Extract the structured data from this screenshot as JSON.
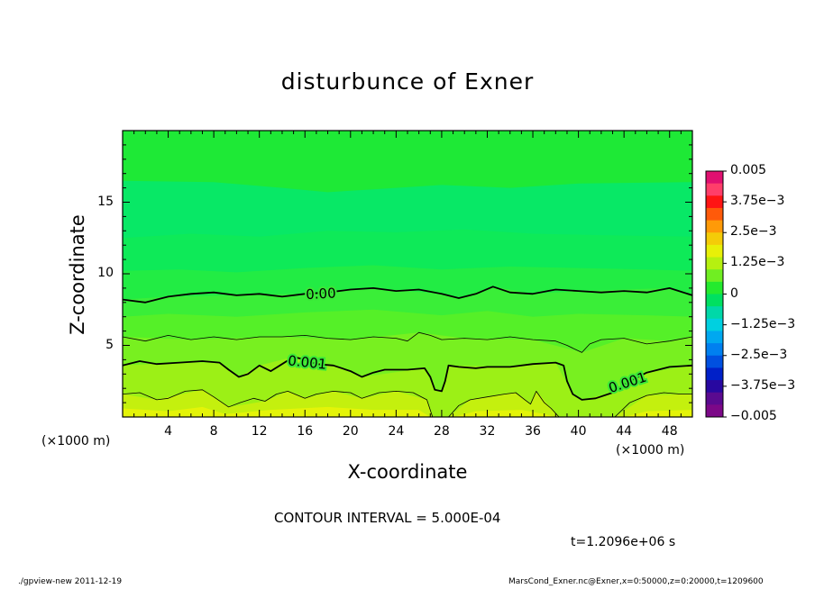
{
  "chart_data": {
    "type": "heatmap",
    "title": "disturbunce of Exner",
    "xlabel": "X-coordinate",
    "ylabel": "Z-coordinate",
    "x_unit_left": "(×1000 m)",
    "x_unit_right": "(×1000 m)",
    "xlim": [
      0,
      50
    ],
    "ylim": [
      0,
      20
    ],
    "x_ticks": [
      "4",
      "8",
      "12",
      "16",
      "20",
      "24",
      "28",
      "32",
      "36",
      "40",
      "44",
      "48"
    ],
    "x_tick_values": [
      4,
      8,
      12,
      16,
      20,
      24,
      28,
      32,
      36,
      40,
      44,
      48
    ],
    "y_ticks": [
      "5",
      "10",
      "15"
    ],
    "y_tick_values": [
      5,
      10,
      15
    ],
    "contour_interval_text": "CONTOUR INTERVAL = 5.000E-04",
    "time_text": "t=1.2096e+06 s",
    "contour_labels": [
      {
        "text": "0.00",
        "x": 17.4,
        "z": 8.6
      },
      {
        "text": "0.001",
        "x": 16.2,
        "z": 3.8
      },
      {
        "text": "0.001",
        "x": 44.3,
        "z": 2.4
      }
    ],
    "contour_lines": [
      {
        "level": 0.0,
        "bold": true,
        "points": [
          [
            0,
            8.2
          ],
          [
            2,
            8.0
          ],
          [
            4,
            8.4
          ],
          [
            6,
            8.6
          ],
          [
            8,
            8.7
          ],
          [
            10,
            8.5
          ],
          [
            12,
            8.6
          ],
          [
            14,
            8.4
          ],
          [
            16,
            8.6
          ],
          [
            18,
            8.7
          ],
          [
            20,
            8.9
          ],
          [
            22,
            9.0
          ],
          [
            24,
            8.8
          ],
          [
            26,
            8.9
          ],
          [
            28,
            8.6
          ],
          [
            29.5,
            8.3
          ],
          [
            31,
            8.6
          ],
          [
            32.5,
            9.1
          ],
          [
            34,
            8.7
          ],
          [
            36,
            8.6
          ],
          [
            38,
            8.9
          ],
          [
            40,
            8.8
          ],
          [
            42,
            8.7
          ],
          [
            44,
            8.8
          ],
          [
            46,
            8.7
          ],
          [
            48,
            9.0
          ],
          [
            50,
            8.5
          ]
        ]
      },
      {
        "level": 0.0005,
        "bold": false,
        "points": [
          [
            0,
            5.6
          ],
          [
            2,
            5.3
          ],
          [
            4,
            5.7
          ],
          [
            6,
            5.4
          ],
          [
            8,
            5.6
          ],
          [
            10,
            5.4
          ],
          [
            12,
            5.6
          ],
          [
            14,
            5.6
          ],
          [
            16,
            5.7
          ],
          [
            18,
            5.5
          ],
          [
            20,
            5.4
          ],
          [
            22,
            5.6
          ],
          [
            24,
            5.5
          ],
          [
            25,
            5.3
          ],
          [
            26,
            5.9
          ],
          [
            27,
            5.7
          ],
          [
            28,
            5.4
          ],
          [
            30,
            5.5
          ],
          [
            32,
            5.4
          ],
          [
            34,
            5.6
          ],
          [
            36,
            5.4
          ],
          [
            38,
            5.3
          ],
          [
            39,
            5.0
          ],
          [
            40.3,
            4.5
          ],
          [
            41,
            5.1
          ],
          [
            42,
            5.4
          ],
          [
            44,
            5.5
          ],
          [
            46,
            5.1
          ],
          [
            48,
            5.3
          ],
          [
            50,
            5.6
          ]
        ]
      },
      {
        "level": 0.001,
        "bold": true,
        "points": [
          [
            0,
            3.6
          ],
          [
            1.5,
            3.9
          ],
          [
            3,
            3.7
          ],
          [
            5,
            3.8
          ],
          [
            7,
            3.9
          ],
          [
            8.5,
            3.8
          ],
          [
            9.3,
            3.3
          ],
          [
            10.2,
            2.8
          ],
          [
            11,
            3.0
          ],
          [
            12,
            3.6
          ],
          [
            13,
            3.2
          ],
          [
            14,
            3.7
          ],
          [
            15,
            4.2
          ],
          [
            16,
            4.0
          ],
          [
            17,
            3.7
          ],
          [
            18.5,
            3.6
          ],
          [
            20,
            3.2
          ],
          [
            21,
            2.8
          ],
          [
            22,
            3.1
          ],
          [
            23,
            3.3
          ],
          [
            25,
            3.3
          ],
          [
            26.5,
            3.4
          ],
          [
            27,
            2.8
          ],
          [
            27.4,
            1.9
          ],
          [
            28,
            1.8
          ],
          [
            28.3,
            2.5
          ],
          [
            28.6,
            3.6
          ],
          [
            29.5,
            3.5
          ],
          [
            31,
            3.4
          ],
          [
            32,
            3.5
          ],
          [
            34,
            3.5
          ],
          [
            36,
            3.7
          ],
          [
            38,
            3.8
          ],
          [
            38.7,
            3.6
          ],
          [
            39,
            2.5
          ],
          [
            39.5,
            1.6
          ],
          [
            40.3,
            1.2
          ],
          [
            41.5,
            1.3
          ],
          [
            43,
            1.7
          ],
          [
            44.5,
            2.5
          ],
          [
            46,
            3.1
          ],
          [
            48,
            3.5
          ],
          [
            50,
            3.6
          ]
        ]
      },
      {
        "level": 0.0015,
        "bold": false,
        "points": [
          [
            0,
            1.6
          ],
          [
            1.5,
            1.7
          ],
          [
            3,
            1.2
          ],
          [
            4,
            1.3
          ],
          [
            5.5,
            1.8
          ],
          [
            7,
            1.9
          ],
          [
            8,
            1.4
          ],
          [
            9.3,
            0.7
          ],
          [
            10.3,
            1.0
          ],
          [
            11.5,
            1.3
          ],
          [
            12.5,
            1.1
          ],
          [
            13.5,
            1.6
          ],
          [
            14.5,
            1.8
          ],
          [
            16,
            1.3
          ],
          [
            17,
            1.6
          ],
          [
            18.5,
            1.8
          ],
          [
            20,
            1.7
          ],
          [
            21,
            1.3
          ],
          [
            22.5,
            1.7
          ],
          [
            24,
            1.8
          ],
          [
            25.5,
            1.7
          ],
          [
            26.7,
            1.2
          ],
          [
            27.2,
            0.0
          ]
        ]
      },
      {
        "level": 0.0015,
        "bold": false,
        "points": [
          [
            28.6,
            0.0
          ],
          [
            29.5,
            0.8
          ],
          [
            30.5,
            1.2
          ],
          [
            32,
            1.4
          ],
          [
            33.5,
            1.6
          ],
          [
            34.5,
            1.7
          ],
          [
            35.3,
            1.2
          ],
          [
            35.8,
            0.9
          ],
          [
            36.3,
            1.8
          ],
          [
            37,
            1.0
          ],
          [
            37.6,
            0.6
          ],
          [
            38.3,
            0.0
          ]
        ]
      },
      {
        "level": 0.0015,
        "bold": false,
        "points": [
          [
            43.2,
            0.0
          ],
          [
            44.5,
            1.0
          ],
          [
            46,
            1.5
          ],
          [
            47.5,
            1.7
          ],
          [
            49,
            1.6
          ],
          [
            50,
            1.6
          ]
        ]
      }
    ],
    "bands": [
      {
        "color": "#3aee38",
        "points": [
          [
            0,
            8.2
          ],
          [
            4,
            8.4
          ],
          [
            10,
            8.5
          ],
          [
            16,
            8.6
          ],
          [
            22,
            9.0
          ],
          [
            28,
            8.6
          ],
          [
            29.5,
            8.3
          ],
          [
            32.5,
            9.1
          ],
          [
            36,
            8.6
          ],
          [
            40,
            8.8
          ],
          [
            48,
            9.0
          ],
          [
            50,
            8.5
          ]
        ]
      },
      {
        "color": "#55f028",
        "points": [
          [
            0,
            7.0
          ],
          [
            4,
            7.2
          ],
          [
            10,
            7.0
          ],
          [
            16,
            7.3
          ],
          [
            22,
            7.5
          ],
          [
            28,
            7.1
          ],
          [
            32,
            7.4
          ],
          [
            36,
            7.0
          ],
          [
            40,
            7.2
          ],
          [
            46,
            7.1
          ],
          [
            50,
            7.0
          ]
        ]
      },
      {
        "color": "#78f020",
        "points": [
          [
            0,
            5.6
          ],
          [
            6,
            5.4
          ],
          [
            14,
            5.6
          ],
          [
            20,
            5.4
          ],
          [
            26,
            5.9
          ],
          [
            30,
            5.5
          ],
          [
            36,
            5.4
          ],
          [
            40.3,
            4.5
          ],
          [
            44,
            5.5
          ],
          [
            48,
            5.3
          ],
          [
            50,
            5.6
          ]
        ]
      },
      {
        "color": "#9cf016",
        "points": [
          [
            0,
            3.6
          ],
          [
            5,
            3.8
          ],
          [
            8.5,
            3.8
          ],
          [
            10.2,
            2.8
          ],
          [
            12,
            3.6
          ],
          [
            15,
            4.2
          ],
          [
            18.5,
            3.6
          ],
          [
            21,
            2.8
          ],
          [
            26.5,
            3.4
          ],
          [
            27.4,
            1.9
          ],
          [
            28,
            1.8
          ],
          [
            28.6,
            3.6
          ],
          [
            34,
            3.5
          ],
          [
            38,
            3.8
          ],
          [
            39.5,
            1.6
          ],
          [
            40.3,
            1.2
          ],
          [
            43,
            1.7
          ],
          [
            46,
            3.1
          ],
          [
            50,
            3.6
          ]
        ]
      },
      {
        "color": "#c4f00e",
        "points": [
          [
            0,
            1.6
          ],
          [
            3,
            1.2
          ],
          [
            7,
            1.9
          ],
          [
            9.3,
            0.7
          ],
          [
            12.5,
            1.1
          ],
          [
            14.5,
            1.8
          ],
          [
            16,
            1.3
          ],
          [
            18.5,
            1.8
          ],
          [
            21,
            1.3
          ],
          [
            24,
            1.8
          ],
          [
            26.7,
            1.2
          ],
          [
            27.2,
            0.0
          ],
          [
            28.6,
            0.0
          ],
          [
            30.5,
            1.2
          ],
          [
            34.5,
            1.7
          ],
          [
            35.8,
            0.9
          ],
          [
            36.3,
            1.8
          ],
          [
            37.6,
            0.6
          ],
          [
            38.3,
            0.0
          ],
          [
            43.2,
            0.0
          ],
          [
            46,
            1.5
          ],
          [
            50,
            1.6
          ]
        ]
      },
      {
        "color": "#e4f408",
        "points": [
          [
            0,
            0.6
          ],
          [
            4,
            0.4
          ],
          [
            7,
            0.7
          ],
          [
            9,
            0.2
          ],
          [
            13,
            0.5
          ],
          [
            18,
            0.7
          ],
          [
            22,
            0.5
          ],
          [
            26,
            0.5
          ],
          [
            27,
            0.0
          ],
          [
            29,
            0.0
          ],
          [
            31,
            0.4
          ],
          [
            35,
            0.5
          ],
          [
            37,
            0.2
          ],
          [
            38,
            0.0
          ],
          [
            44,
            0.0
          ],
          [
            46,
            0.4
          ],
          [
            50,
            0.5
          ]
        ]
      }
    ],
    "upper_bands": [
      {
        "color": "#22ec44",
        "points": [
          [
            0,
            10.2
          ],
          [
            5,
            10.3
          ],
          [
            10,
            10.1
          ],
          [
            16,
            10.4
          ],
          [
            22,
            10.6
          ],
          [
            28,
            10.3
          ],
          [
            34,
            10.5
          ],
          [
            40,
            10.4
          ],
          [
            46,
            10.3
          ],
          [
            50,
            10.2
          ]
        ]
      },
      {
        "color": "#0eea58",
        "points": [
          [
            0,
            12.5
          ],
          [
            6,
            12.8
          ],
          [
            12,
            12.6
          ],
          [
            18,
            13.0
          ],
          [
            24,
            12.9
          ],
          [
            30,
            13.1
          ],
          [
            36,
            12.8
          ],
          [
            42,
            12.7
          ],
          [
            50,
            12.6
          ]
        ]
      },
      {
        "color": "#08e866",
        "points": [
          [
            0,
            16.5
          ],
          [
            8,
            16.4
          ],
          [
            14,
            16.0
          ],
          [
            18,
            15.7
          ],
          [
            22,
            15.9
          ],
          [
            28,
            16.2
          ],
          [
            34,
            16.0
          ],
          [
            40,
            16.3
          ],
          [
            50,
            16.4
          ]
        ]
      }
    ],
    "colorbar": {
      "labels": [
        "0.005",
        "3.75e−3",
        "2.5e−3",
        "1.25e−3",
        "0",
        "−1.25e−3",
        "−2.5e−3",
        "−3.75e−3",
        "−0.005"
      ],
      "colors": [
        "#e01070",
        "#ff3e6a",
        "#ff1414",
        "#ff5a0a",
        "#ff9a08",
        "#f4cc08",
        "#e8f008",
        "#b6f010",
        "#70ee22",
        "#24ea2e",
        "#00e060",
        "#00d8a8",
        "#00d0e0",
        "#00a8f0",
        "#0080f0",
        "#0050e0",
        "#0020c8",
        "#2808a0",
        "#5a0a90",
        "#7c0888"
      ]
    }
  },
  "footer": {
    "left": "./gpview-new   2011-12-19",
    "right": "MarsCond_Exner.nc@Exner,x=0:50000,z=0:20000,t=1209600"
  }
}
